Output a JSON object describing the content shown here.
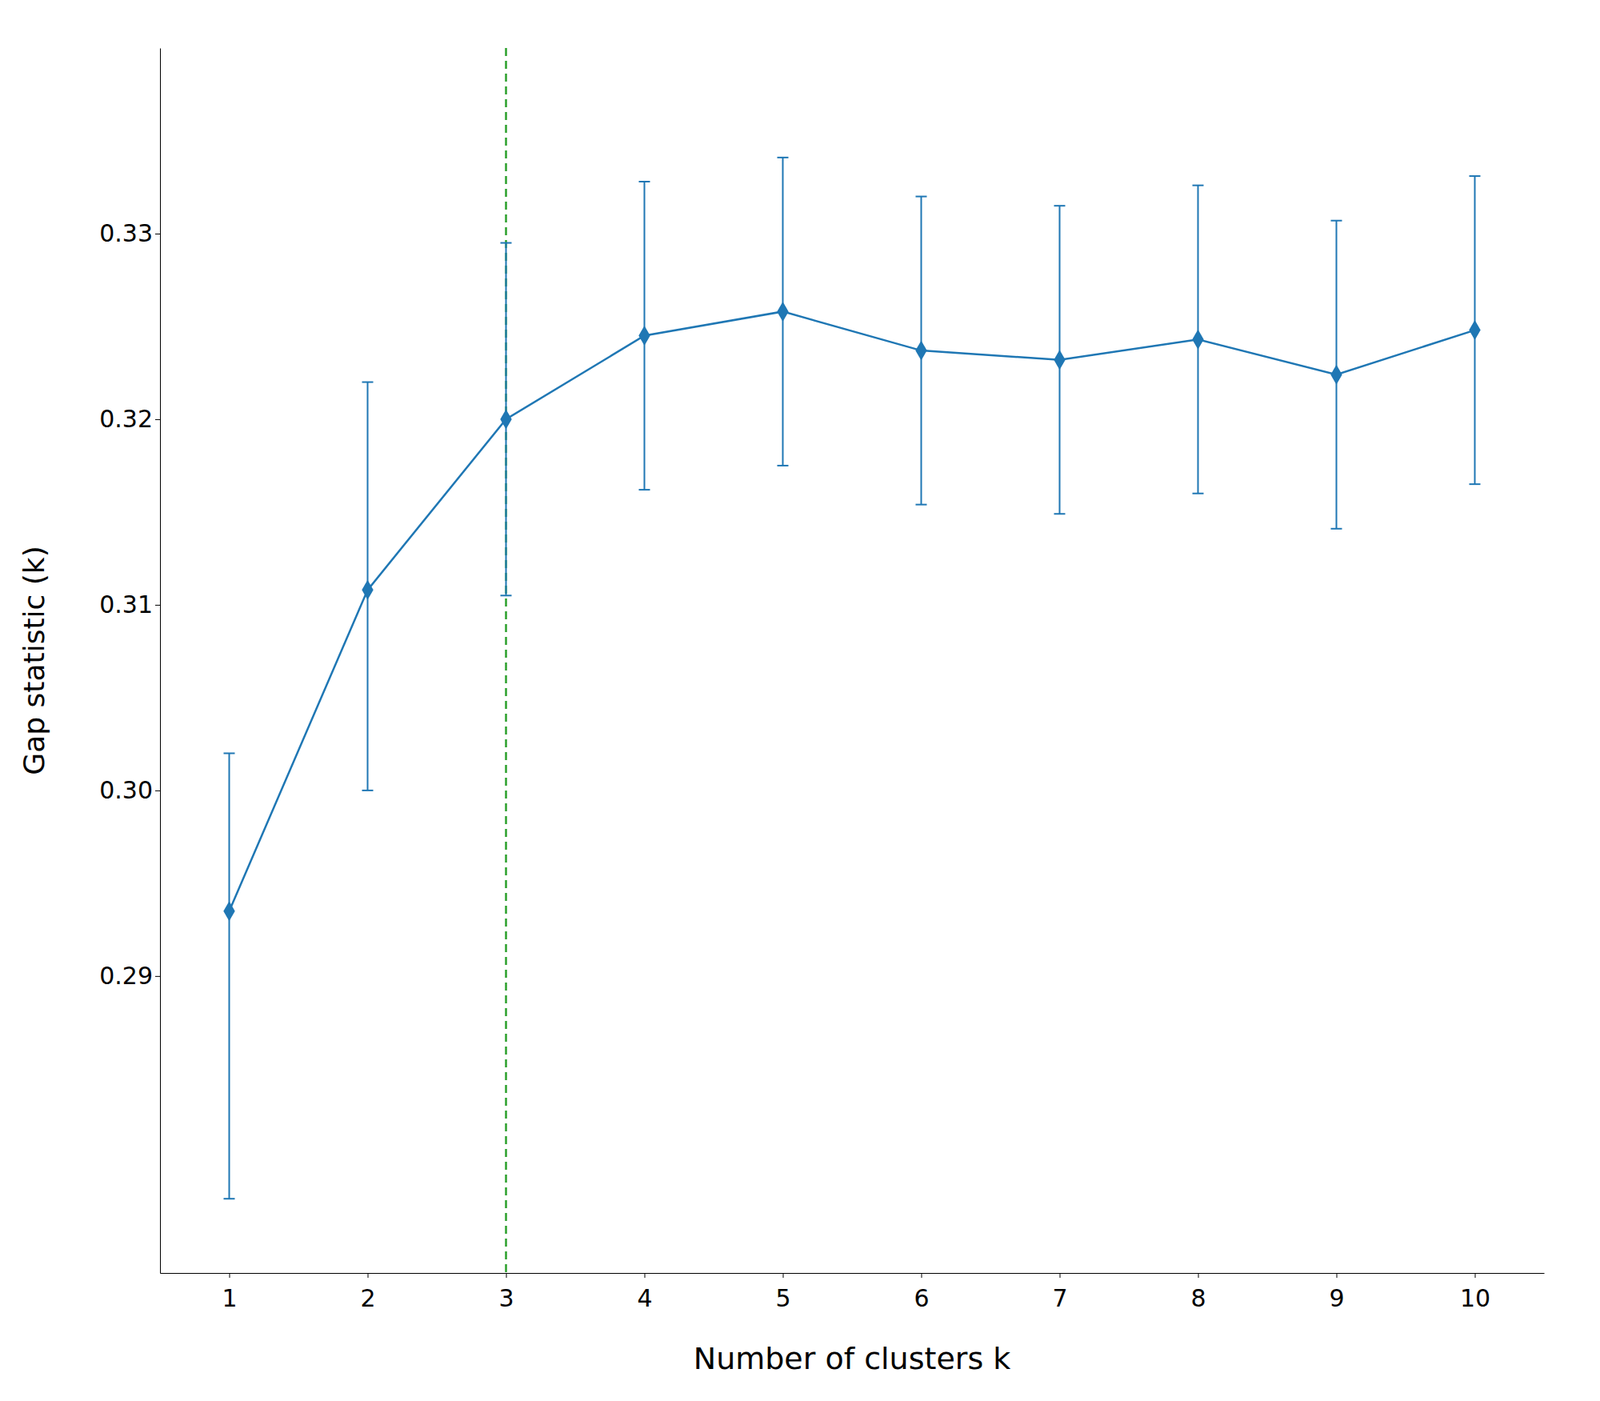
{
  "chart_data": {
    "type": "line",
    "xlabel": "Number of clusters k",
    "ylabel": "Gap statistic (k)",
    "x": [
      1,
      2,
      3,
      4,
      5,
      6,
      7,
      8,
      9,
      10
    ],
    "series": [
      {
        "values": [
          0.2935,
          0.3108,
          0.32,
          0.3245,
          0.3258,
          0.3237,
          0.3232,
          0.3243,
          0.3224,
          0.3248
        ],
        "error_low": [
          0.0155,
          0.0108,
          0.0095,
          0.0083,
          0.0083,
          0.0083,
          0.0083,
          0.0083,
          0.0083,
          0.0083
        ],
        "error_high": [
          0.0085,
          0.0112,
          0.0095,
          0.0083,
          0.0083,
          0.0083,
          0.0083,
          0.0083,
          0.0083,
          0.0083
        ],
        "marker": "diamond",
        "line_style": "solid"
      }
    ],
    "vline_x": 3,
    "xlim": [
      0.5,
      10.5
    ],
    "ylim": [
      0.274,
      0.34
    ],
    "xticks": [
      1,
      2,
      3,
      4,
      5,
      6,
      7,
      8,
      9,
      10
    ],
    "yticks": [
      0.29,
      {
        "value": 0.3,
        "label": "0.30"
      },
      0.31,
      0.32,
      0.33
    ],
    "grid": false
  }
}
